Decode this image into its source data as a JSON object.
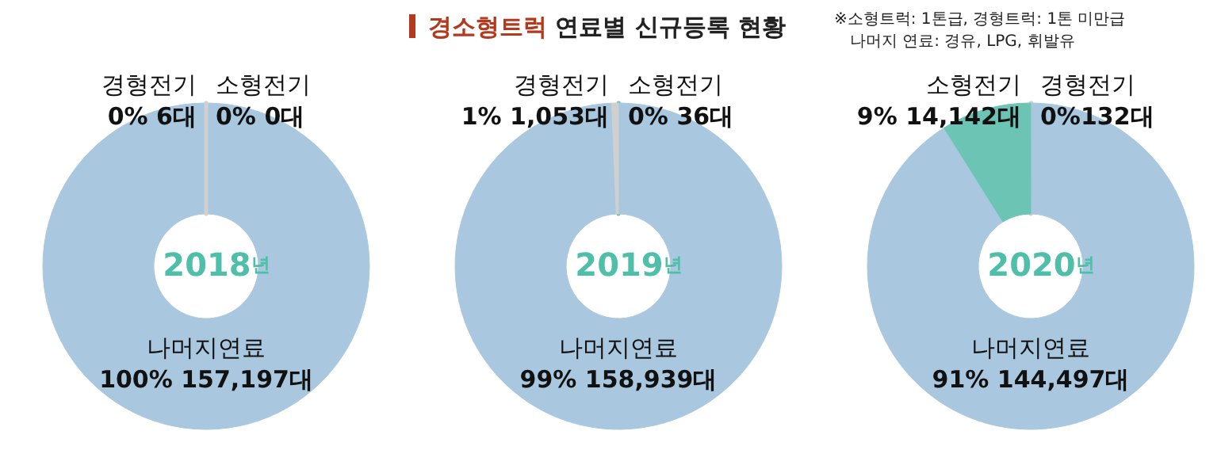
{
  "chart_data": [
    {
      "type": "other",
      "title": "경소형트럭 연료별 신규등록 현황",
      "annotations": [
        "※소형트럭: 1톤급, 경형트럭: 1톤 미만급",
        "나머지 연료: 경유, LPG, 휘발유"
      ]
    },
    {
      "type": "donut",
      "title": "2018년",
      "categories": [
        "소형전기",
        "나머지연료",
        "경형전기"
      ],
      "values": [
        0,
        157197,
        6
      ],
      "colors": [
        "#6cc4b4",
        "#a9c8e0",
        "#d0d0d0"
      ],
      "value_labels": [
        "0% 0대",
        "100% 157,197대",
        "0% 6대"
      ],
      "legend": false
    },
    {
      "type": "donut",
      "title": "2019년",
      "categories": [
        "소형전기",
        "나머지연료",
        "경형전기"
      ],
      "values": [
        36,
        158939,
        1053
      ],
      "colors": [
        "#6cc4b4",
        "#a9c8e0",
        "#d0d0d0"
      ],
      "value_labels": [
        "0% 36대",
        "99% 158,939대",
        "1% 1,053대"
      ],
      "legend": false
    },
    {
      "type": "donut",
      "title": "2020년",
      "categories": [
        "경형전기",
        "나머지연료",
        "소형전기"
      ],
      "values": [
        132,
        144497,
        14142
      ],
      "colors": [
        "#d0d0d0",
        "#a9c8e0",
        "#6cc4b4"
      ],
      "value_labels": [
        "0%132대",
        "91% 144,497대",
        "9% 14,142대"
      ],
      "legend": false
    }
  ]
}
